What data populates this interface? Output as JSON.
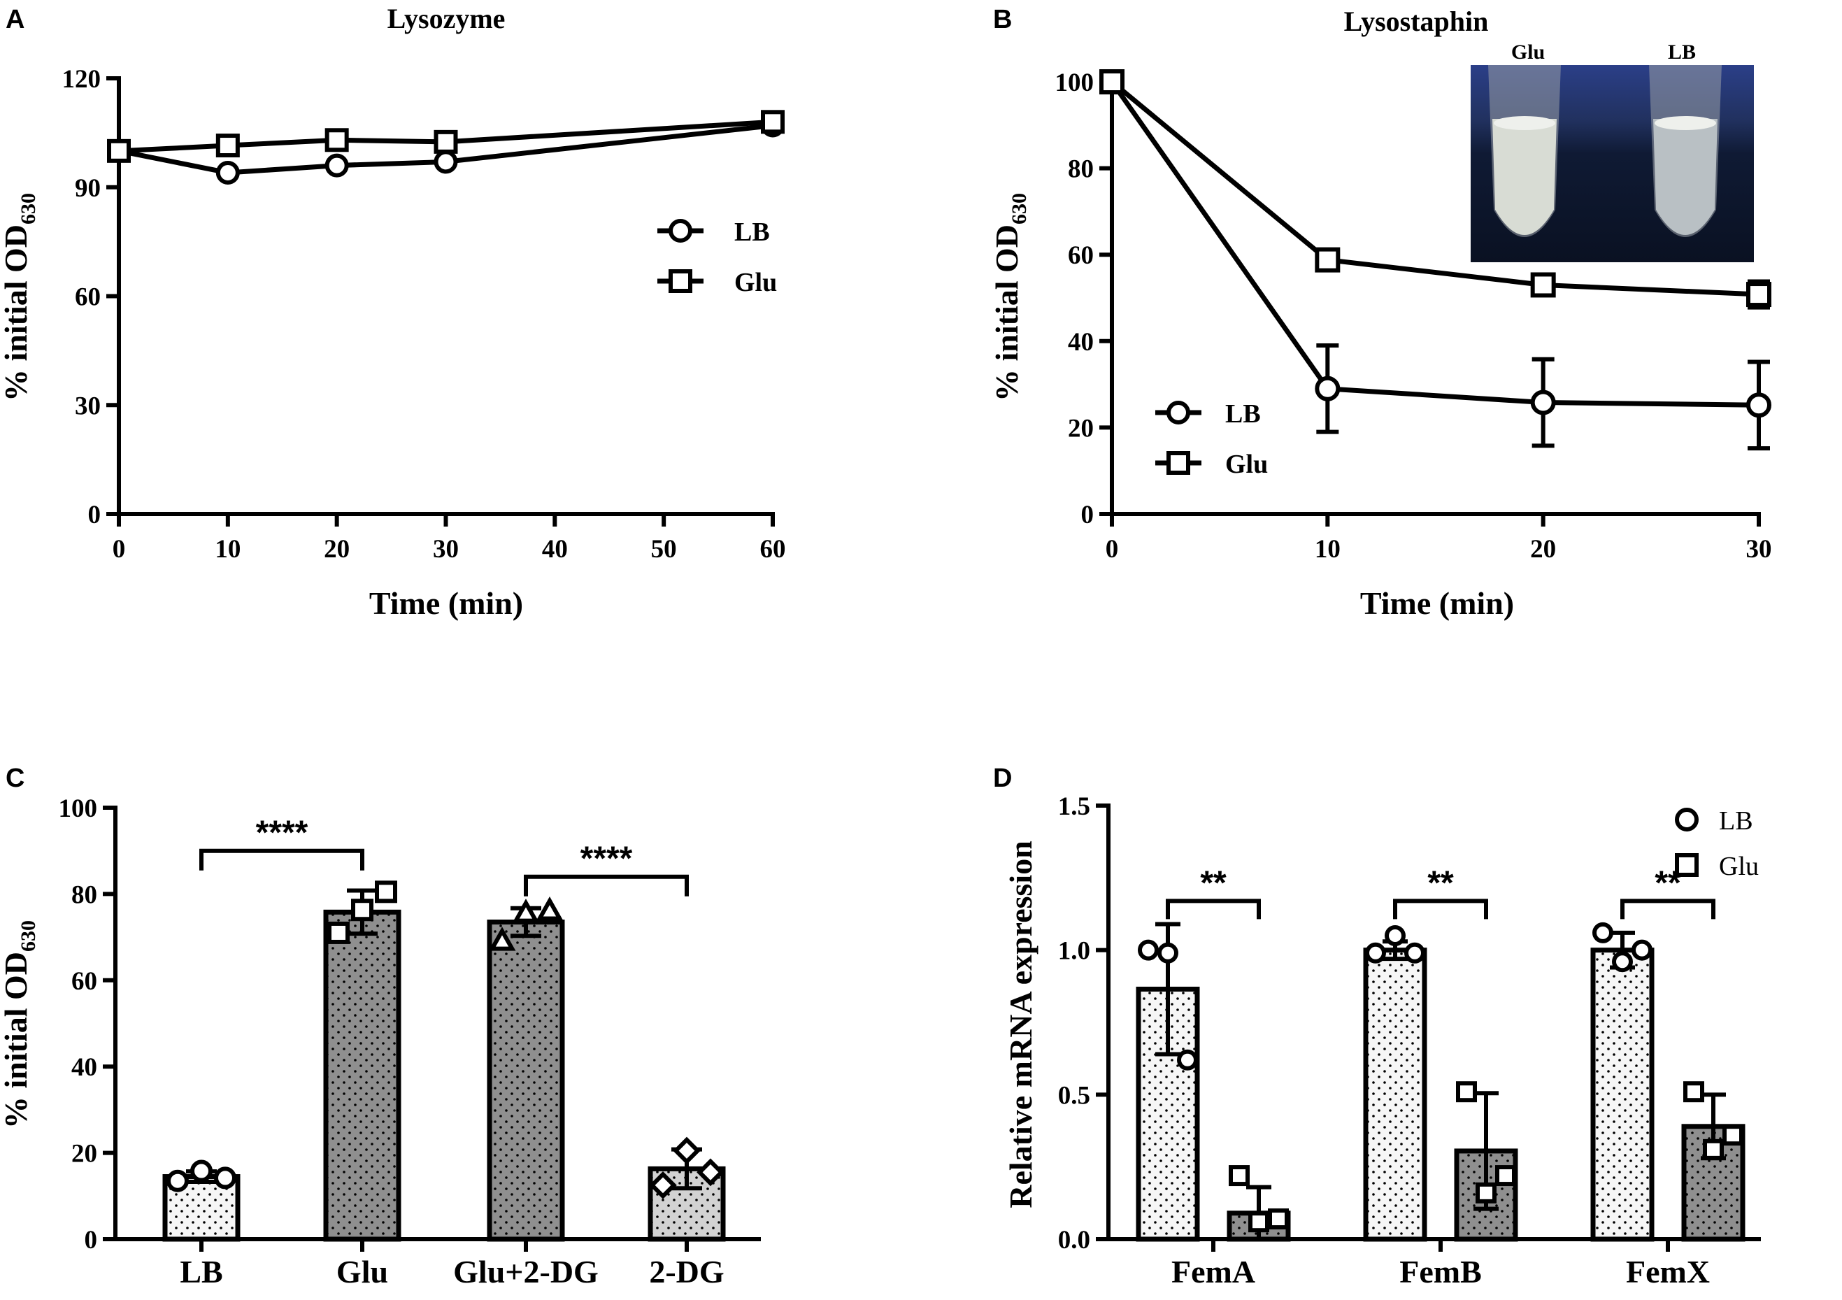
{
  "chart_data": [
    {
      "type": "line",
      "panel": "A",
      "title": "Lysozyme",
      "xlabel": "Time (min)",
      "ylabel": "% initial OD",
      "ylabel_sub": "630",
      "xlim": [
        0,
        60
      ],
      "ylim": [
        0,
        120
      ],
      "xticks": [
        0,
        10,
        20,
        30,
        40,
        50,
        60
      ],
      "yticks": [
        0,
        30,
        60,
        90,
        120
      ],
      "legend": "right",
      "series": [
        {
          "name": "LB",
          "marker": "circle",
          "x": [
            0,
            10,
            20,
            30,
            60
          ],
          "y": [
            100,
            94,
            96,
            97,
            107
          ]
        },
        {
          "name": "Glu",
          "marker": "square",
          "x": [
            0,
            10,
            20,
            30,
            60
          ],
          "y": [
            100,
            101.5,
            103,
            102.5,
            108
          ]
        }
      ]
    },
    {
      "type": "line",
      "panel": "B",
      "title": "Lysostaphin",
      "xlabel": "Time (min)",
      "ylabel": "% initial OD",
      "ylabel_sub": "630",
      "xlim": [
        0,
        30
      ],
      "ylim": [
        0,
        100
      ],
      "xticks": [
        0,
        10,
        20,
        30
      ],
      "yticks": [
        0,
        20,
        40,
        60,
        80,
        100
      ],
      "legend": "bottom-left",
      "inset_labels": [
        "Glu",
        "LB"
      ],
      "series": [
        {
          "name": "LB",
          "marker": "circle",
          "x": [
            0,
            10,
            20,
            30
          ],
          "y": [
            100,
            29,
            25.8,
            25.2
          ],
          "err": [
            0,
            10,
            10,
            10
          ]
        },
        {
          "name": "Glu",
          "marker": "square",
          "x": [
            0,
            10,
            20,
            30
          ],
          "y": [
            100,
            58.8,
            53,
            50.8
          ],
          "err": [
            0,
            0,
            1.5,
            3
          ]
        }
      ]
    },
    {
      "type": "bar",
      "panel": "C",
      "categories": [
        "LB",
        "Glu",
        "Glu+2-DG",
        "2-DG"
      ],
      "values": [
        14.5,
        75.8,
        73.5,
        16.3
      ],
      "errors": [
        1.2,
        5,
        3.2,
        4.5
      ],
      "points": [
        [
          13.5,
          15.8,
          14.2
        ],
        [
          71,
          76.3,
          80.5
        ],
        [
          69,
          75.5,
          76
        ],
        [
          12.5,
          20.5,
          15.5
        ]
      ],
      "markers": [
        "circle",
        "square",
        "triangle",
        "diamond"
      ],
      "fills": [
        "#f6f6f6",
        "#8f8f8f",
        "#8f8f8f",
        "#d2d2d2"
      ],
      "xlabel": "",
      "ylabel": "% initial OD",
      "ylabel_sub": "630",
      "ylim": [
        0,
        100
      ],
      "yticks": [
        0,
        20,
        40,
        60,
        80,
        100
      ],
      "significance": [
        {
          "from": 0,
          "to": 1,
          "label": "****",
          "y": 90
        },
        {
          "from": 2,
          "to": 3,
          "label": "****",
          "y": 84
        }
      ]
    },
    {
      "type": "bar",
      "panel": "D",
      "categories": [
        "FemA",
        "FemB",
        "FemX"
      ],
      "series": [
        {
          "name": "LB",
          "marker": "circle",
          "fill": "#f6f6f6",
          "values": [
            0.865,
            1.0,
            1.0
          ],
          "errors": [
            0.225,
            0.03,
            0.06
          ],
          "points": [
            [
              1.0,
              0.99,
              0.62
            ],
            [
              0.99,
              1.05,
              0.99
            ],
            [
              1.06,
              0.96,
              1.0
            ]
          ]
        },
        {
          "name": "Glu",
          "marker": "square",
          "fill": "#8f8f8f",
          "values": [
            0.09,
            0.305,
            0.39
          ],
          "errors": [
            0.09,
            0.2,
            0.11
          ],
          "points": [
            [
              0.22,
              0.06,
              0.07
            ],
            [
              0.51,
              0.16,
              0.22
            ],
            [
              0.51,
              0.31,
              0.36
            ]
          ]
        }
      ],
      "xlabel": "",
      "ylabel": "Relative mRNA expression",
      "ylim": [
        0,
        1.5
      ],
      "yticks": [
        "0.0",
        "0.5",
        "1.0",
        "1.5"
      ],
      "legend": "top-right",
      "significance": [
        {
          "group": 0,
          "label": "**",
          "y": 1.17
        },
        {
          "group": 1,
          "label": "**",
          "y": 1.17
        },
        {
          "group": 2,
          "label": "**",
          "y": 1.17
        }
      ]
    }
  ]
}
